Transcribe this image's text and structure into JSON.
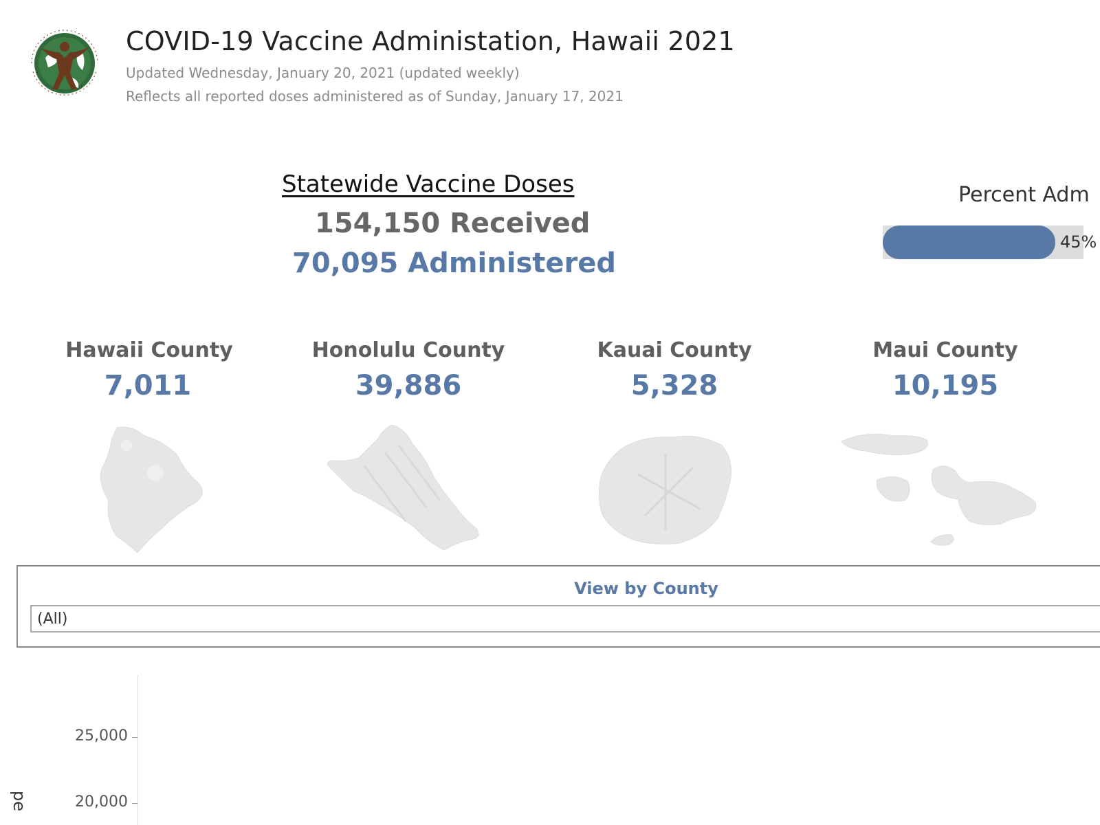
{
  "header": {
    "logo_text": "HAWAII STATE DEPARTMENT OF HEALTH",
    "title": "COVID-19 Vaccine Administation, Hawaii 2021",
    "updated": "Updated Wednesday, January 20,  2021 (updated weekly)",
    "reflects": "Reflects all reported doses administered as of Sunday, January 17, 2021"
  },
  "statewide": {
    "heading": "Statewide Vaccine Doses",
    "received": "154,150 Received",
    "administered": "70,095 Administered"
  },
  "percent": {
    "label": "Percent Adm",
    "value_text": "45%",
    "fraction": 0.45
  },
  "counties": [
    {
      "name": "Hawaii  County",
      "value": "7,011"
    },
    {
      "name": "Honolulu County",
      "value": "39,886"
    },
    {
      "name": "Kauai County",
      "value": "5,328"
    },
    {
      "name": "Maui County",
      "value": "10,195"
    }
  ],
  "filter": {
    "label": "View by County",
    "selected": "(All)"
  },
  "chart": {
    "yticks": [
      "25,000",
      "20,000"
    ],
    "ylabel": "pe"
  },
  "colors": {
    "accent": "#5878a5",
    "muted": "#666666",
    "bar_track": "#dddddd"
  }
}
